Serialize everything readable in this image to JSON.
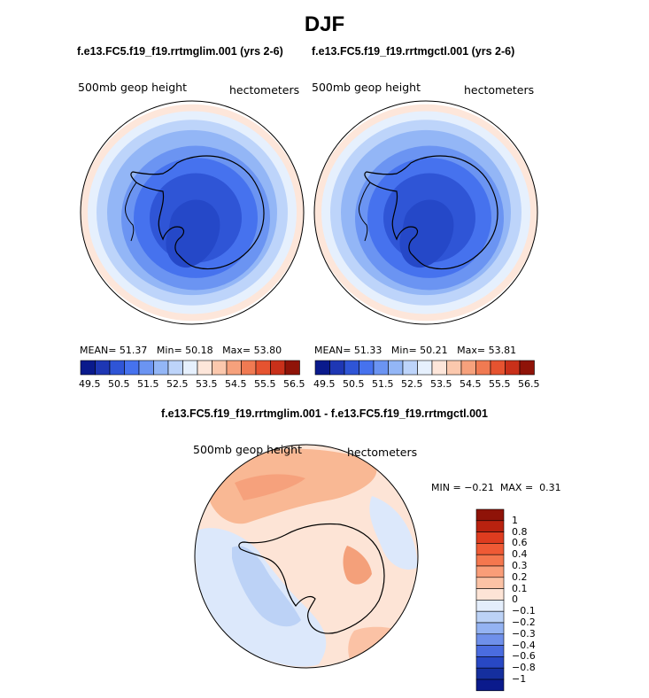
{
  "figure": {
    "title": "DJF",
    "subtitle_left": "f.e13.FC5.f19_f19.rrtmglim.001 (yrs 2-6)",
    "subtitle_right": "f.e13.FC5.f19_f19.rrtmgctl.001 (yrs 2-6)",
    "diff_title": "f.e13.FC5.f19_f19.rrtmglim.001 - f.e13.FC5.f19_f19.rrtmgctl.001"
  },
  "panels": [
    {
      "variable": "500mb geop height",
      "units": "hectometers",
      "mean_label": "MEAN=",
      "mean": "51.37",
      "min_label": "Min=",
      "min": "50.18",
      "max_label": "Max=",
      "max": "53.80"
    },
    {
      "variable": "500mb geop height",
      "units": "hectometers",
      "mean_label": "MEAN=",
      "mean": "51.33",
      "min_label": "Min=",
      "min": "50.21",
      "max_label": "Max=",
      "max": "53.81"
    }
  ],
  "diff_panel": {
    "variable": "500mb geop height",
    "units": "hectometers",
    "min_label": "MIN =",
    "min": "−0.21",
    "max_label": "MAX =",
    "max": "0.31"
  },
  "colorbar_main": {
    "ticks": [
      "49.5",
      "50.5",
      "51.5",
      "52.5",
      "53.5",
      "54.5",
      "55.5",
      "56.5"
    ],
    "colors": [
      "#0a1a8c",
      "#1e37b4",
      "#2f55d6",
      "#4672ee",
      "#6b94f2",
      "#93b6f6",
      "#bdd4fa",
      "#e6f0fd",
      "#fde6da",
      "#fbc8ad",
      "#f6a17c",
      "#f07a52",
      "#e65330",
      "#c9301a",
      "#8f1308"
    ]
  },
  "colorbar_diff": {
    "ticks": [
      "1",
      "0.8",
      "0.6",
      "0.4",
      "0.3",
      "0.2",
      "0.1",
      "0",
      "−0.1",
      "−0.2",
      "−0.3",
      "−0.4",
      "−0.6",
      "−0.8",
      "−1"
    ],
    "colors": [
      "#8f1308",
      "#b9220f",
      "#de3c1f",
      "#ef5a35",
      "#f4774e",
      "#f99d78",
      "#fbc2a5",
      "#fde4d6",
      "#e4eefc",
      "#bcd2f6",
      "#94b3f2",
      "#6f90ea",
      "#4a6cdf",
      "#2848c4",
      "#152f9e",
      "#0a1a8c"
    ]
  },
  "maps": {
    "main_levels": [
      "#fde6da",
      "#e6f0fd",
      "#bdd4fa",
      "#93b6f6",
      "#6b94f2",
      "#4672ee",
      "#2f55d6"
    ],
    "diff_background": "#fde4d6"
  }
}
